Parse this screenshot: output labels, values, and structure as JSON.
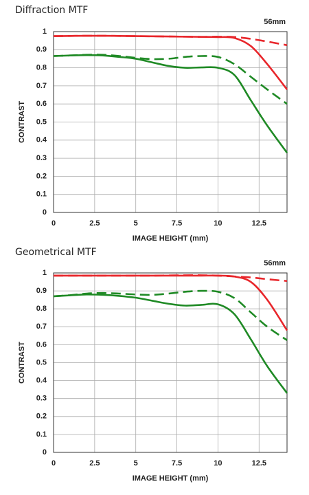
{
  "chart_data": [
    {
      "type": "line",
      "title": "Diffraction MTF",
      "annotation": "56mm",
      "xlabel": "IMAGE HEIGHT (mm)",
      "ylabel": "CONTRAST",
      "x": [
        0,
        1,
        2,
        3,
        4,
        5,
        6,
        7,
        8,
        9,
        10,
        11,
        12,
        13,
        14.2
      ],
      "series": [
        {
          "color": "#e8262b",
          "dashed": false,
          "values": [
            0.975,
            0.976,
            0.977,
            0.977,
            0.976,
            0.975,
            0.974,
            0.973,
            0.972,
            0.971,
            0.97,
            0.965,
            0.92,
            0.82,
            0.68
          ]
        },
        {
          "color": "#e8262b",
          "dashed": true,
          "values": [
            0.975,
            0.976,
            0.977,
            0.977,
            0.976,
            0.975,
            0.974,
            0.973,
            0.972,
            0.971,
            0.972,
            0.97,
            0.96,
            0.945,
            0.925
          ]
        },
        {
          "color": "#1f8a25",
          "dashed": false,
          "values": [
            0.865,
            0.868,
            0.87,
            0.868,
            0.86,
            0.85,
            0.83,
            0.81,
            0.8,
            0.802,
            0.8,
            0.76,
            0.62,
            0.48,
            0.33
          ]
        },
        {
          "color": "#1f8a25",
          "dashed": true,
          "values": [
            0.865,
            0.868,
            0.872,
            0.872,
            0.865,
            0.855,
            0.848,
            0.85,
            0.86,
            0.865,
            0.86,
            0.82,
            0.75,
            0.68,
            0.6
          ]
        }
      ],
      "xlim": [
        0,
        14.2
      ],
      "xticks": [
        0,
        2.5,
        5,
        7.5,
        10,
        12.5
      ],
      "ylim": [
        0,
        1
      ],
      "yticks": [
        0,
        0.1,
        0.2,
        0.3,
        0.4,
        0.5,
        0.6,
        0.7,
        0.8,
        0.9,
        1
      ],
      "grid": true
    },
    {
      "type": "line",
      "title": "Geometrical MTF",
      "annotation": "56mm",
      "xlabel": "IMAGE HEIGHT (mm)",
      "ylabel": "CONTRAST",
      "x": [
        0,
        1,
        2,
        3,
        4,
        5,
        6,
        7,
        8,
        9,
        10,
        11,
        12,
        13,
        14.2
      ],
      "series": [
        {
          "color": "#e8262b",
          "dashed": false,
          "values": [
            0.985,
            0.985,
            0.985,
            0.985,
            0.985,
            0.985,
            0.985,
            0.985,
            0.985,
            0.985,
            0.985,
            0.98,
            0.95,
            0.85,
            0.68
          ]
        },
        {
          "color": "#e8262b",
          "dashed": true,
          "values": [
            0.985,
            0.985,
            0.985,
            0.985,
            0.985,
            0.985,
            0.985,
            0.986,
            0.987,
            0.987,
            0.985,
            0.98,
            0.975,
            0.965,
            0.955
          ]
        },
        {
          "color": "#1f8a25",
          "dashed": false,
          "values": [
            0.87,
            0.875,
            0.88,
            0.878,
            0.872,
            0.862,
            0.845,
            0.828,
            0.818,
            0.822,
            0.825,
            0.77,
            0.63,
            0.48,
            0.33
          ]
        },
        {
          "color": "#1f8a25",
          "dashed": true,
          "values": [
            0.87,
            0.876,
            0.885,
            0.888,
            0.885,
            0.88,
            0.878,
            0.885,
            0.895,
            0.9,
            0.895,
            0.86,
            0.78,
            0.7,
            0.625
          ]
        }
      ],
      "xlim": [
        0,
        14.2
      ],
      "xticks": [
        0,
        2.5,
        5,
        7.5,
        10,
        12.5
      ],
      "ylim": [
        0,
        1
      ],
      "yticks": [
        0,
        0.1,
        0.2,
        0.3,
        0.4,
        0.5,
        0.6,
        0.7,
        0.8,
        0.9,
        1
      ],
      "grid": true
    }
  ]
}
